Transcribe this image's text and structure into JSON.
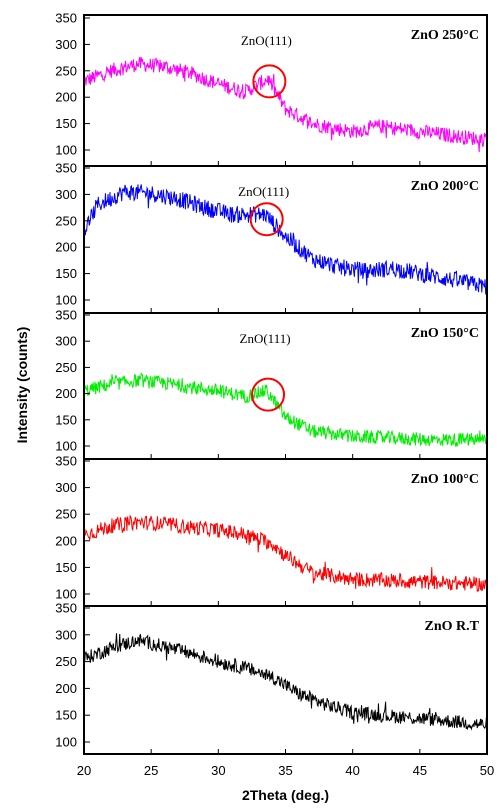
{
  "chart_data": {
    "type": "line",
    "xlabel": "2Theta (deg.)",
    "ylabel": "Intensity (counts)",
    "xlim": [
      20,
      50
    ],
    "xticks": [
      20,
      25,
      30,
      35,
      40,
      45,
      50
    ],
    "ylim": [
      90,
      350
    ],
    "yticks": [
      100,
      150,
      200,
      250,
      300,
      350
    ],
    "annotation_label": "ZnO(111)",
    "panels": [
      {
        "title": "ZnO 250°C",
        "color": "#ff00ff",
        "annotation": {
          "text": "ZnO(111)",
          "x": 33.8,
          "y": 230
        },
        "profile": [
          [
            20,
            230
          ],
          [
            22,
            250
          ],
          [
            24,
            263
          ],
          [
            26,
            258
          ],
          [
            28,
            245
          ],
          [
            30,
            225
          ],
          [
            32,
            210
          ],
          [
            33.7,
            235
          ],
          [
            35,
            178
          ],
          [
            37,
            150
          ],
          [
            40,
            135
          ],
          [
            42,
            145
          ],
          [
            45,
            135
          ],
          [
            48,
            125
          ],
          [
            50,
            120
          ]
        ],
        "noise": 14
      },
      {
        "title": "ZnO 200°C",
        "color": "#0000ff",
        "annotation": {
          "text": "ZnO(111)",
          "x": 33.6,
          "y": 253
        },
        "profile": [
          [
            20,
            230
          ],
          [
            21,
            280
          ],
          [
            23,
            305
          ],
          [
            25,
            302
          ],
          [
            27,
            292
          ],
          [
            29,
            275
          ],
          [
            31,
            262
          ],
          [
            33.5,
            262
          ],
          [
            35,
            220
          ],
          [
            37,
            178
          ],
          [
            39,
            162
          ],
          [
            41,
            155
          ],
          [
            43,
            160
          ],
          [
            45,
            150
          ],
          [
            48,
            135
          ],
          [
            50,
            125
          ]
        ],
        "noise": 16
      },
      {
        "title": "ZnO 150°C",
        "color": "#00ee00",
        "annotation": {
          "text": "ZnO(111)",
          "x": 33.7,
          "y": 198
        },
        "profile": [
          [
            20,
            205
          ],
          [
            22,
            218
          ],
          [
            24,
            225
          ],
          [
            26,
            220
          ],
          [
            28,
            212
          ],
          [
            30,
            205
          ],
          [
            32,
            195
          ],
          [
            33.6,
            205
          ],
          [
            35,
            155
          ],
          [
            37,
            128
          ],
          [
            40,
            118
          ],
          [
            43,
            115
          ],
          [
            46,
            112
          ],
          [
            50,
            112
          ]
        ],
        "noise": 13
      },
      {
        "title": "ZnO 100°C",
        "color": "#ff0000",
        "annotation": null,
        "profile": [
          [
            20,
            210
          ],
          [
            22,
            228
          ],
          [
            24,
            235
          ],
          [
            26,
            232
          ],
          [
            28,
            225
          ],
          [
            30,
            220
          ],
          [
            32,
            212
          ],
          [
            34,
            195
          ],
          [
            35,
            172
          ],
          [
            37,
            140
          ],
          [
            40,
            128
          ],
          [
            43,
            125
          ],
          [
            46,
            122
          ],
          [
            50,
            118
          ]
        ],
        "noise": 14
      },
      {
        "title": "ZnO R.T",
        "color": "#000000",
        "annotation": null,
        "profile": [
          [
            20,
            255
          ],
          [
            22,
            275
          ],
          [
            24,
            290
          ],
          [
            26,
            278
          ],
          [
            28,
            265
          ],
          [
            30,
            250
          ],
          [
            32,
            238
          ],
          [
            34,
            222
          ],
          [
            36,
            190
          ],
          [
            38,
            170
          ],
          [
            40,
            155
          ],
          [
            43,
            148
          ],
          [
            46,
            142
          ],
          [
            50,
            132
          ]
        ],
        "noise": 13
      }
    ]
  }
}
